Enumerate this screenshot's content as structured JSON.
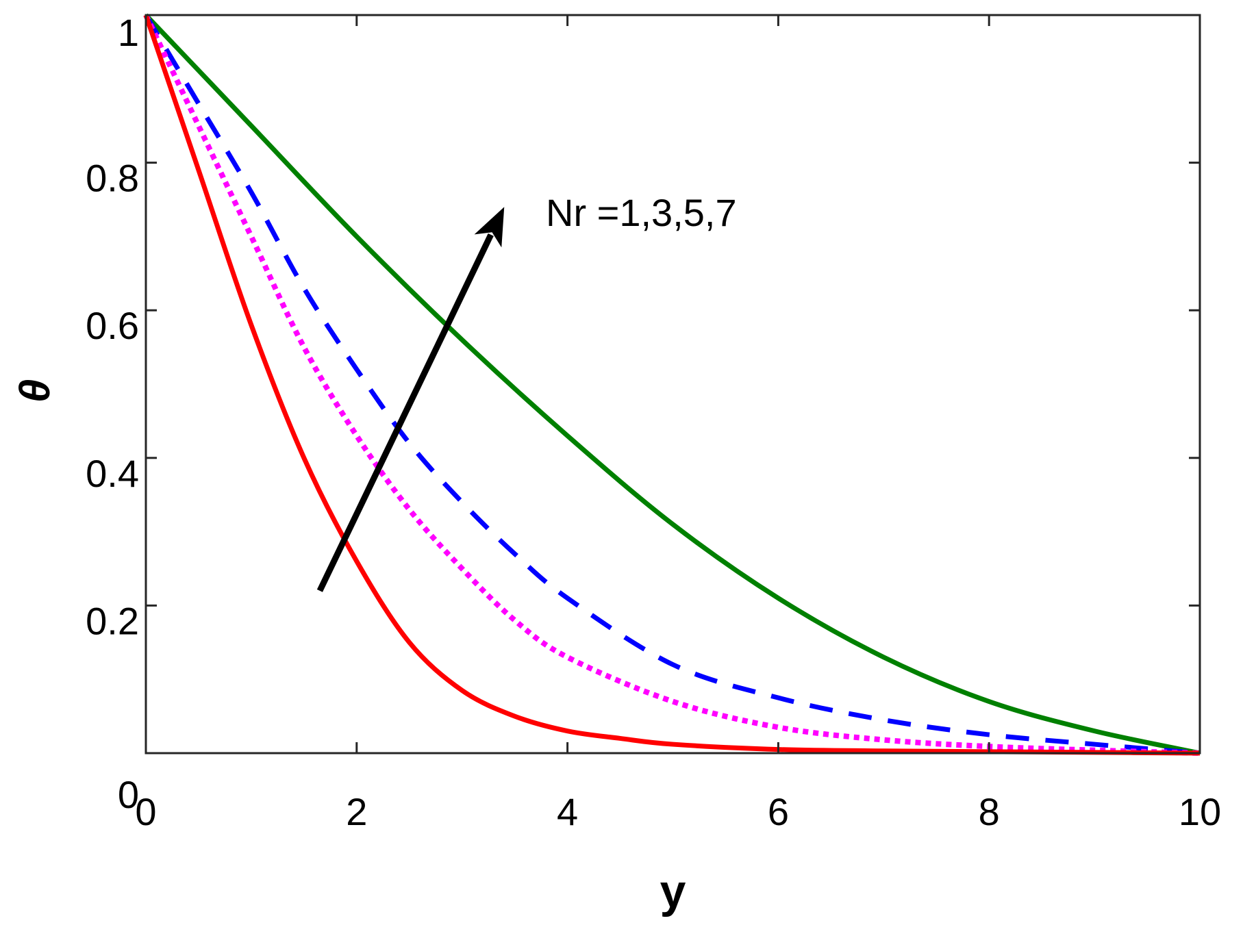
{
  "chart_data": {
    "type": "line",
    "xlabel": "y",
    "ylabel": "θ",
    "xlim": [
      0,
      10
    ],
    "ylim": [
      0,
      1
    ],
    "xticks": [
      "0",
      "2",
      "4",
      "6",
      "8",
      "10"
    ],
    "yticks": [
      "0",
      "0.2",
      "0.4",
      "0.6",
      "0.8",
      "1"
    ],
    "grid": false,
    "annotation": {
      "text": "Nr =1,3,5,7",
      "arrow_from": [
        1.65,
        0.22
      ],
      "arrow_to": [
        3.4,
        0.74
      ]
    },
    "series": [
      {
        "color": "#008000",
        "style": "solid",
        "x": [
          0,
          1,
          2,
          3,
          4,
          5,
          6,
          7,
          8,
          9,
          10
        ],
        "y": [
          1.0,
          0.85,
          0.7,
          0.56,
          0.43,
          0.31,
          0.21,
          0.13,
          0.07,
          0.03,
          0.0
        ]
      },
      {
        "color": "#0000ff",
        "style": "dashed",
        "x": [
          0,
          0.5,
          1,
          1.5,
          2,
          2.5,
          3,
          3.5,
          4,
          5,
          6,
          7,
          8,
          9,
          10
        ],
        "y": [
          1.0,
          0.88,
          0.76,
          0.63,
          0.52,
          0.42,
          0.34,
          0.27,
          0.21,
          0.12,
          0.075,
          0.045,
          0.025,
          0.012,
          0.0
        ]
      },
      {
        "color": "#ff00ff",
        "style": "dotted",
        "x": [
          0,
          0.5,
          1,
          1.5,
          2,
          2.5,
          3,
          3.5,
          4,
          5,
          6,
          7,
          8,
          9,
          10
        ],
        "y": [
          1.0,
          0.85,
          0.7,
          0.55,
          0.43,
          0.33,
          0.25,
          0.18,
          0.13,
          0.07,
          0.035,
          0.018,
          0.009,
          0.004,
          0.0
        ]
      },
      {
        "color": "#ff0000",
        "style": "solid",
        "x": [
          0,
          0.5,
          1,
          1.5,
          2,
          2.5,
          3,
          3.5,
          4,
          4.5,
          5,
          6,
          7,
          8,
          9,
          10
        ],
        "y": [
          1.0,
          0.79,
          0.58,
          0.4,
          0.26,
          0.15,
          0.085,
          0.05,
          0.03,
          0.02,
          0.012,
          0.005,
          0.003,
          0.002,
          0.001,
          0.0
        ]
      }
    ]
  }
}
